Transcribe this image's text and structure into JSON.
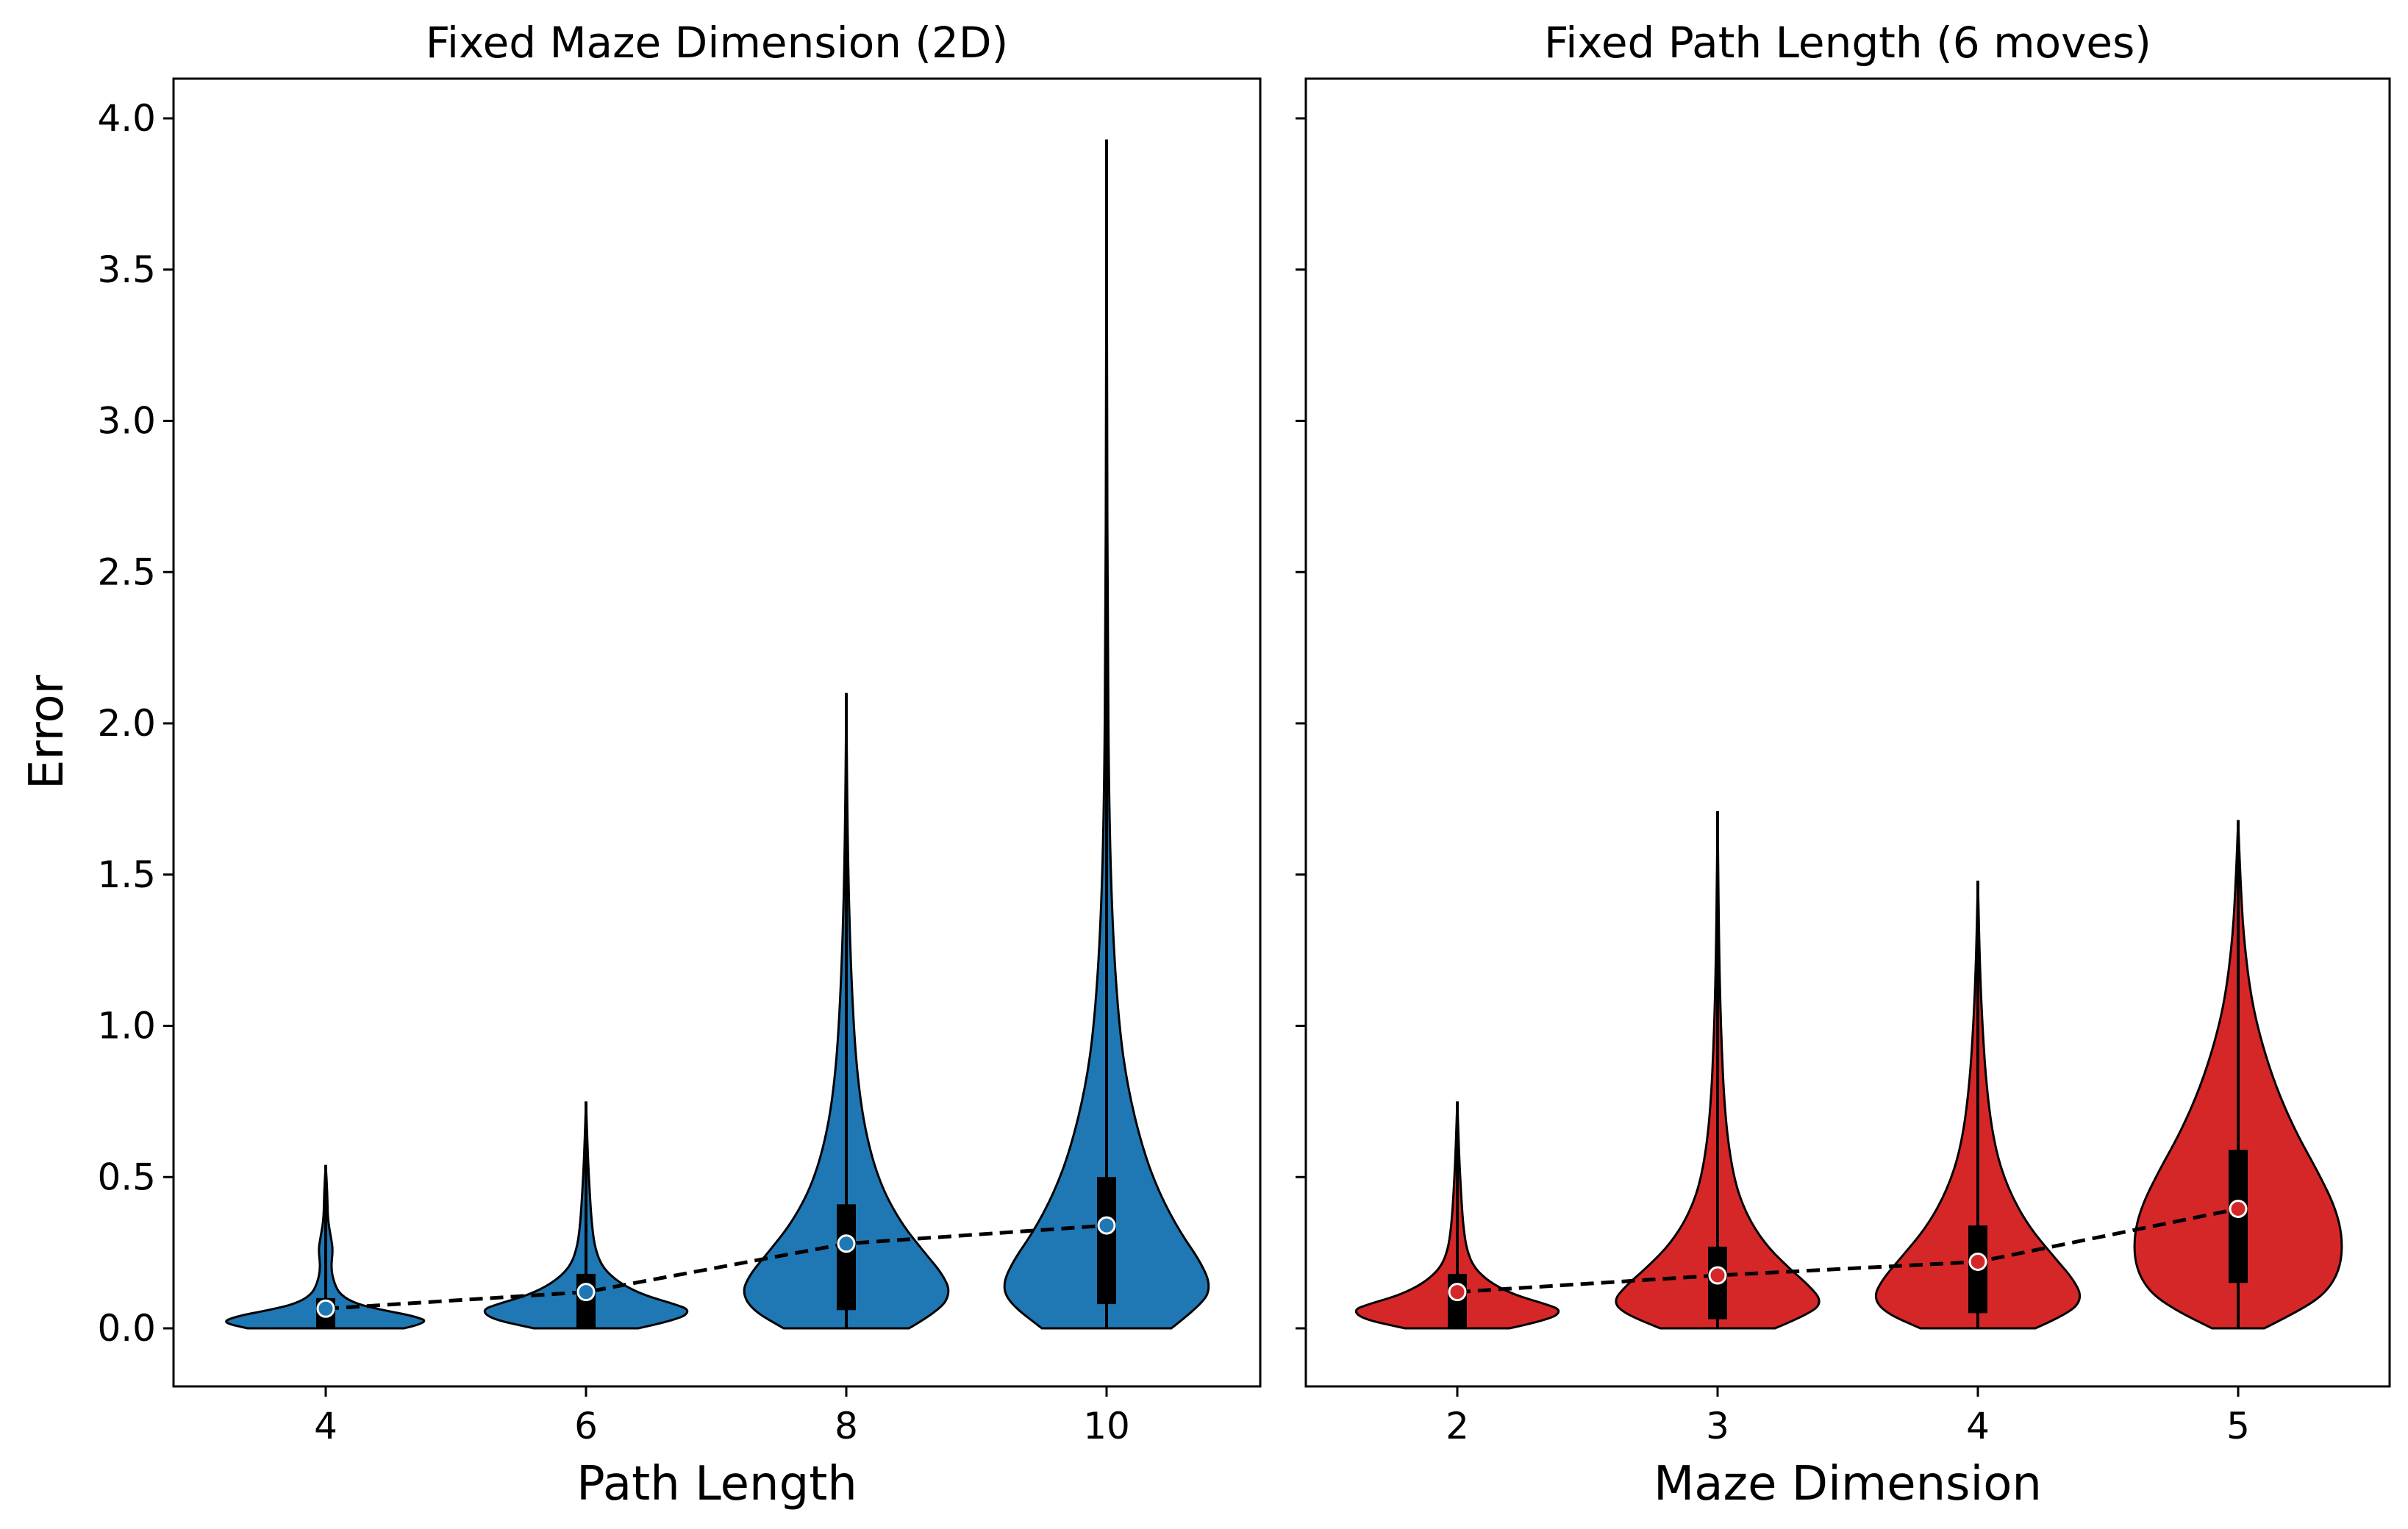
{
  "chart_data": [
    {
      "type": "violin",
      "title": "Fixed Maze Dimension (2D)",
      "xlabel": "Path Length",
      "ylabel": "Error",
      "ylim": [
        -0.2,
        4.13
      ],
      "yticks": [
        "0.0",
        "0.5",
        "1.0",
        "1.5",
        "2.0",
        "2.5",
        "3.0",
        "3.5",
        "4.0"
      ],
      "color": "#1f77b4",
      "categories": [
        "4",
        "6",
        "8",
        "10"
      ],
      "violins": [
        {
          "x": 4,
          "min": 0.0,
          "max": 0.54,
          "q1": 0.0,
          "q3": 0.1,
          "median": 0.065,
          "halfwidth_profile": [
            [
              0,
              0.75
            ],
            [
              0.02,
              1.0
            ],
            [
              0.04,
              0.85
            ],
            [
              0.06,
              0.55
            ],
            [
              0.08,
              0.3
            ],
            [
              0.11,
              0.14
            ],
            [
              0.15,
              0.08
            ],
            [
              0.2,
              0.05
            ],
            [
              0.26,
              0.07
            ],
            [
              0.3,
              0.05
            ],
            [
              0.36,
              0.02
            ],
            [
              0.45,
              0.015
            ],
            [
              0.54,
              0.0
            ]
          ]
        },
        {
          "x": 6,
          "min": 0.0,
          "max": 0.75,
          "q1": 0.0,
          "q3": 0.18,
          "median": 0.12,
          "halfwidth_profile": [
            [
              0,
              0.5
            ],
            [
              0.03,
              0.9
            ],
            [
              0.06,
              1.0
            ],
            [
              0.08,
              0.85
            ],
            [
              0.11,
              0.55
            ],
            [
              0.15,
              0.32
            ],
            [
              0.2,
              0.16
            ],
            [
              0.26,
              0.09
            ],
            [
              0.33,
              0.06
            ],
            [
              0.42,
              0.04
            ],
            [
              0.55,
              0.02
            ],
            [
              0.75,
              0.0
            ]
          ]
        },
        {
          "x": 8,
          "min": 0.0,
          "max": 2.1,
          "q1": 0.06,
          "q3": 0.41,
          "median": 0.28,
          "halfwidth_profile": [
            [
              0,
              0.6
            ],
            [
              0.06,
              0.9
            ],
            [
              0.12,
              1.0
            ],
            [
              0.18,
              0.92
            ],
            [
              0.25,
              0.75
            ],
            [
              0.35,
              0.52
            ],
            [
              0.48,
              0.32
            ],
            [
              0.65,
              0.18
            ],
            [
              0.85,
              0.1
            ],
            [
              1.1,
              0.055
            ],
            [
              1.4,
              0.025
            ],
            [
              1.7,
              0.01
            ],
            [
              2.1,
              0.0
            ]
          ]
        },
        {
          "x": 10,
          "min": 0.0,
          "max": 3.93,
          "q1": 0.08,
          "q3": 0.5,
          "median": 0.34,
          "halfwidth_profile": [
            [
              0,
              0.62
            ],
            [
              0.08,
              0.92
            ],
            [
              0.14,
              1.0
            ],
            [
              0.22,
              0.9
            ],
            [
              0.32,
              0.7
            ],
            [
              0.45,
              0.5
            ],
            [
              0.6,
              0.34
            ],
            [
              0.8,
              0.2
            ],
            [
              1.0,
              0.12
            ],
            [
              1.3,
              0.06
            ],
            [
              1.7,
              0.025
            ],
            [
              2.3,
              0.01
            ],
            [
              3.0,
              0.005
            ],
            [
              3.93,
              0.0
            ]
          ]
        }
      ],
      "medians_line": [
        0.065,
        0.12,
        0.28,
        0.34
      ]
    },
    {
      "type": "violin",
      "title": "Fixed Path Length (6 moves)",
      "xlabel": "Maze Dimension",
      "ylabel": "",
      "ylim": [
        -0.2,
        4.13
      ],
      "color": "#d62728",
      "categories": [
        "2",
        "3",
        "4",
        "5"
      ],
      "violins": [
        {
          "x": 2,
          "min": 0.0,
          "max": 0.75,
          "q1": 0.0,
          "q3": 0.18,
          "median": 0.12,
          "halfwidth_profile": [
            [
              0,
              0.5
            ],
            [
              0.03,
              0.9
            ],
            [
              0.06,
              1.0
            ],
            [
              0.08,
              0.85
            ],
            [
              0.11,
              0.55
            ],
            [
              0.15,
              0.32
            ],
            [
              0.2,
              0.16
            ],
            [
              0.26,
              0.09
            ],
            [
              0.33,
              0.06
            ],
            [
              0.42,
              0.04
            ],
            [
              0.55,
              0.02
            ],
            [
              0.75,
              0.0
            ]
          ]
        },
        {
          "x": 3,
          "min": 0.0,
          "max": 1.71,
          "q1": 0.03,
          "q3": 0.27,
          "median": 0.175,
          "halfwidth_profile": [
            [
              0,
              0.55
            ],
            [
              0.05,
              0.9
            ],
            [
              0.09,
              1.0
            ],
            [
              0.14,
              0.88
            ],
            [
              0.2,
              0.68
            ],
            [
              0.28,
              0.45
            ],
            [
              0.38,
              0.27
            ],
            [
              0.5,
              0.15
            ],
            [
              0.7,
              0.07
            ],
            [
              1.0,
              0.03
            ],
            [
              1.3,
              0.012
            ],
            [
              1.71,
              0.0
            ]
          ]
        },
        {
          "x": 4,
          "min": 0.0,
          "max": 1.48,
          "q1": 0.05,
          "q3": 0.34,
          "median": 0.22,
          "halfwidth_profile": [
            [
              0,
              0.55
            ],
            [
              0.05,
              0.88
            ],
            [
              0.1,
              1.0
            ],
            [
              0.16,
              0.92
            ],
            [
              0.24,
              0.72
            ],
            [
              0.34,
              0.48
            ],
            [
              0.46,
              0.29
            ],
            [
              0.6,
              0.16
            ],
            [
              0.8,
              0.08
            ],
            [
              1.05,
              0.035
            ],
            [
              1.25,
              0.015
            ],
            [
              1.48,
              0.0
            ]
          ]
        },
        {
          "x": 5,
          "min": 0.0,
          "max": 1.68,
          "q1": 0.15,
          "q3": 0.59,
          "median": 0.395,
          "halfwidth_profile": [
            [
              0,
              0.25
            ],
            [
              0.06,
              0.6
            ],
            [
              0.12,
              0.85
            ],
            [
              0.2,
              0.98
            ],
            [
              0.3,
              1.0
            ],
            [
              0.4,
              0.93
            ],
            [
              0.52,
              0.76
            ],
            [
              0.65,
              0.55
            ],
            [
              0.8,
              0.36
            ],
            [
              0.95,
              0.22
            ],
            [
              1.1,
              0.12
            ],
            [
              1.3,
              0.05
            ],
            [
              1.5,
              0.02
            ],
            [
              1.68,
              0.0
            ]
          ]
        }
      ],
      "medians_line": [
        0.12,
        0.175,
        0.22,
        0.395
      ]
    }
  ]
}
